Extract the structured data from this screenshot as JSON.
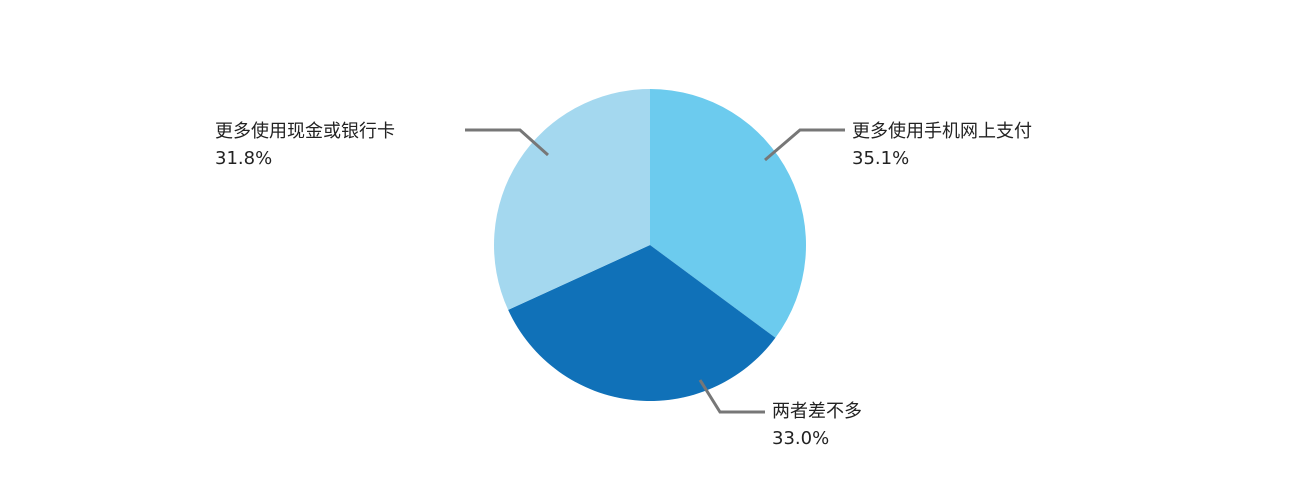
{
  "chart_data": {
    "type": "pie",
    "categories": [
      "更多使用手机网上支付",
      "两者差不多",
      "更多使用现金或银行卡"
    ],
    "values": [
      35.1,
      33.0,
      31.8
    ],
    "value_labels": [
      "35.1%",
      "33.0%",
      "31.8%"
    ],
    "colors": [
      "#6ccbee",
      "#1071b8",
      "#a4d8ef"
    ]
  }
}
